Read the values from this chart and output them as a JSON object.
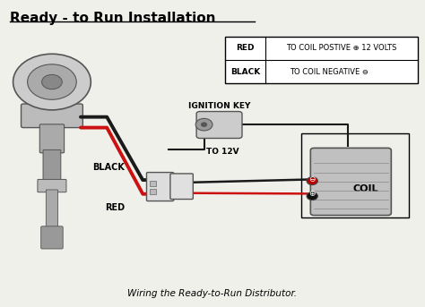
{
  "title": "Ready - to Run Installation",
  "subtitle": "Wiring the Ready-to-Run Distributor.",
  "background_color": "#f0f0eb",
  "ignition_key_label": "IGNITION KEY",
  "to12v_label": "TO 12V",
  "black_label": "BLACK",
  "red_label": "RED",
  "coil_label": "COIL",
  "table_row1_label": "RED",
  "table_row1_desc": "TO COIL POSTIVE ⊕ 12 VOLTS",
  "table_row2_label": "BLACK",
  "table_row2_desc": "TO COIL NEGATIVE ⊖",
  "fig_width": 4.74,
  "fig_height": 3.43,
  "dpi": 100
}
